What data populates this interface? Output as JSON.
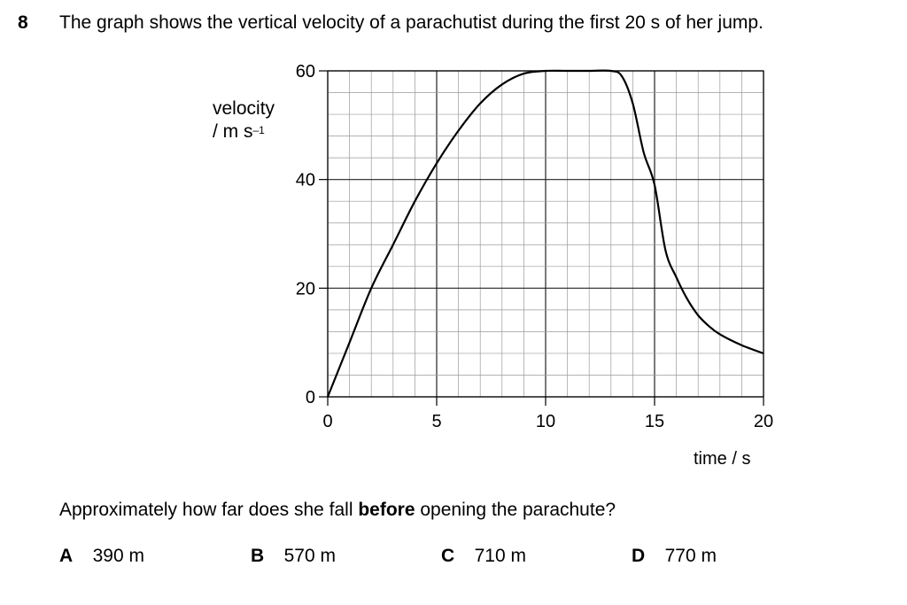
{
  "question": {
    "number": "8",
    "text": "The graph shows the vertical velocity of a parachutist during the first 20 s of her jump.",
    "prompt_pre": "Approximately how far does she fall ",
    "prompt_bold": "before",
    "prompt_post": " opening the parachute?"
  },
  "options": [
    {
      "letter": "A",
      "value": "390 m"
    },
    {
      "letter": "B",
      "value": "570 m"
    },
    {
      "letter": "C",
      "value": "710 m"
    },
    {
      "letter": "D",
      "value": "770 m"
    }
  ],
  "chart_data": {
    "type": "line",
    "ylabel_line1": "velocity",
    "ylabel_line2": "/ m s",
    "ylabel_exp": "–1",
    "xlabel": "time / s",
    "xlim": [
      0,
      20
    ],
    "ylim": [
      0,
      60
    ],
    "x_ticks": [
      "0",
      "5",
      "10",
      "15",
      "20"
    ],
    "y_ticks": [
      "0",
      "20",
      "40",
      "60"
    ],
    "grid": true,
    "series": [
      {
        "x": [
          0,
          1,
          2,
          3,
          4,
          5,
          6,
          7,
          8,
          9,
          10,
          11,
          12,
          13,
          13.5,
          14,
          14.5,
          15,
          15.5,
          16,
          16.5,
          17,
          17.5,
          18,
          19,
          20
        ],
        "y": [
          0,
          10,
          20,
          28,
          36,
          43,
          49,
          54,
          57.5,
          59.5,
          60,
          60,
          60,
          60,
          59,
          54,
          45,
          39,
          27,
          22,
          18,
          15,
          13,
          11.5,
          9.5,
          8
        ]
      }
    ]
  }
}
